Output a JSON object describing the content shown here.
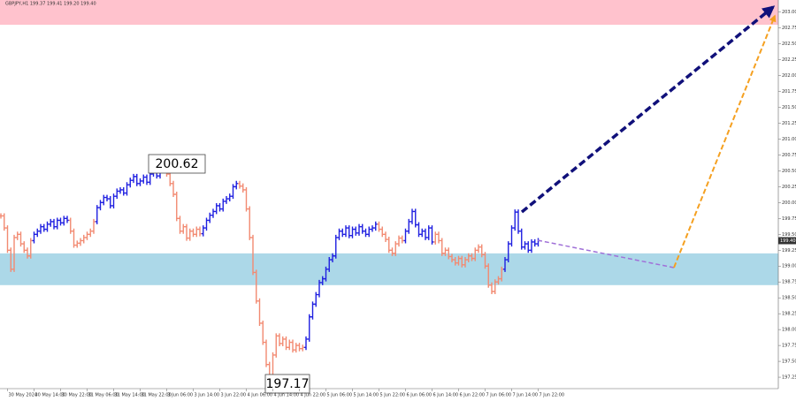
{
  "chart_data": {
    "type": "bar_ohlc",
    "header": "GBPJPY,H1  199.37 199.41 199.20 199.40",
    "price_label": "199.40",
    "annotations": [
      "200.62",
      "197.17"
    ],
    "ylim": [
      197.07,
      203.19
    ],
    "yticks": [
      197.25,
      {
        "value": 197.5,
        "label": "197.50"
      },
      197.75,
      {
        "value": 198,
        "label": "198.00"
      },
      198.25,
      {
        "value": 198.5,
        "label": "198.50"
      },
      198.75,
      {
        "value": 199,
        "label": "199.00"
      },
      199.25,
      {
        "value": 199.5,
        "label": "199.50"
      },
      199.75,
      {
        "value": 200,
        "label": "200.00"
      },
      200.25,
      {
        "value": 200.5,
        "label": "200.50"
      },
      200.75,
      {
        "value": 201,
        "label": "201.00"
      },
      201.25,
      {
        "value": 201.5,
        "label": "201.50"
      },
      201.75,
      {
        "value": 202,
        "label": "202.00"
      },
      202.25,
      {
        "value": 202.5,
        "label": "202.50"
      },
      202.75,
      {
        "value": 203,
        "label": "203.00"
      }
    ],
    "zones": [
      {
        "range": [
          202.8,
          203.19
        ],
        "color": "#ffc2cd"
      },
      {
        "range": [
          198.7,
          199.2
        ],
        "color": "#acd8e8"
      }
    ],
    "categories": [
      null,
      null,
      "30 May 2024",
      null,
      null,
      null,
      null,
      null,
      null,
      null,
      "30 May 14:00",
      null,
      null,
      null,
      null,
      null,
      null,
      null,
      "30 May 22:00",
      null,
      null,
      null,
      null,
      null,
      null,
      null,
      "31 May 06:00",
      null,
      null,
      null,
      null,
      null,
      null,
      null,
      "31 May 14:00",
      null,
      null,
      null,
      null,
      null,
      null,
      null,
      "31 May 22:00",
      null,
      null,
      null,
      null,
      null,
      null,
      null,
      "3 Jun 06:00",
      null,
      null,
      null,
      null,
      null,
      null,
      null,
      "3 Jun 14:00",
      null,
      null,
      null,
      null,
      null,
      null,
      null,
      "3 Jun 22:00",
      null,
      null,
      null,
      null,
      null,
      null,
      null,
      "4 Jun 06:00",
      null,
      null,
      null,
      null,
      null,
      null,
      null,
      "4 Jun 14:00",
      null,
      null,
      null,
      null,
      null,
      null,
      null,
      "4 Jun 22:00",
      null,
      null,
      null,
      null,
      null,
      null,
      null,
      "5 Jun 06:00",
      null,
      null,
      null,
      null,
      null,
      null,
      null,
      "5 Jun 14:00",
      null,
      null,
      null,
      null,
      null,
      null,
      null,
      "5 Jun 22:00",
      null,
      null,
      null,
      null,
      null,
      null,
      null,
      "6 Jun 06:00",
      null,
      null,
      null,
      null,
      null,
      null,
      null,
      "6 Jun 14:00",
      null,
      null,
      null,
      null,
      null,
      null,
      null,
      "6 Jun 22:00",
      null,
      null,
      null,
      null,
      null,
      null,
      null,
      "7 Jun 06:00",
      null,
      null,
      null,
      null,
      null,
      null,
      null,
      "7 Jun 14:00",
      null,
      null,
      null,
      null,
      null,
      null,
      null,
      "7 Jun 22:00"
    ],
    "series": [
      {
        "color": "#f28a72",
        "values": [
          199.79,
          199.6,
          199.25,
          198.95,
          199.45,
          199.5,
          199.35,
          199.25,
          199.16,
          199.4,
          null,
          null,
          null,
          null,
          null,
          null,
          null,
          null,
          null,
          null,
          null,
          199.55,
          199.33,
          199.36,
          199.4,
          199.45,
          199.5,
          199.55,
          199.7,
          null,
          null,
          null,
          null,
          null,
          null,
          null,
          null,
          null,
          null,
          null,
          null,
          null,
          null,
          null,
          null,
          null,
          null,
          null,
          null,
          null,
          200.45,
          200.3,
          200.13,
          199.75,
          199.55,
          199.62,
          199.44,
          199.55,
          199.5,
          199.58,
          199.51,
          null,
          null,
          null,
          null,
          null,
          null,
          null,
          null,
          null,
          null,
          null,
          200.26,
          200.2,
          199.9,
          199.45,
          198.9,
          198.45,
          198.1,
          197.8,
          197.45,
          197.17,
          197.6,
          197.9,
          197.78,
          197.85,
          197.72,
          197.8,
          197.68,
          197.75,
          197.7,
          197.72,
          null,
          null,
          null,
          null,
          null,
          null,
          null,
          null,
          null,
          null,
          null,
          null,
          null,
          null,
          null,
          null,
          null,
          null,
          null,
          null,
          null,
          null,
          199.58,
          199.5,
          199.42,
          199.25,
          199.2,
          199.35,
          199.44,
          199.4,
          null,
          null,
          null,
          null,
          null,
          null,
          null,
          null,
          null,
          199.5,
          199.4,
          199.2,
          199.25,
          199.15,
          199.1,
          199.05,
          199.12,
          199.02,
          199.1,
          199.16,
          199.12,
          199.25,
          199.3,
          199.18,
          199.0,
          198.7,
          198.6,
          198.75,
          198.8,
          198.95,
          null,
          null,
          null,
          null,
          null,
          null,
          null,
          null,
          null,
          null,
          null
        ]
      },
      {
        "color": "#2020e0",
        "values": [
          null,
          null,
          null,
          null,
          null,
          null,
          null,
          null,
          null,
          null,
          199.5,
          199.55,
          199.62,
          199.58,
          199.66,
          199.7,
          199.62,
          199.72,
          199.68,
          199.75,
          199.72,
          null,
          null,
          null,
          null,
          null,
          null,
          null,
          null,
          199.92,
          200.0,
          200.08,
          200.06,
          199.95,
          200.1,
          200.18,
          200.2,
          200.15,
          200.28,
          200.35,
          200.41,
          200.3,
          200.34,
          200.4,
          200.32,
          200.45,
          200.5,
          200.42,
          200.55,
          200.62,
          null,
          null,
          null,
          null,
          null,
          null,
          null,
          null,
          null,
          null,
          null,
          199.6,
          199.72,
          199.8,
          199.86,
          199.95,
          199.9,
          200.02,
          200.06,
          200.1,
          200.25,
          200.3,
          null,
          null,
          null,
          null,
          null,
          null,
          null,
          null,
          null,
          null,
          null,
          null,
          null,
          null,
          null,
          null,
          null,
          null,
          null,
          null,
          197.85,
          198.2,
          198.4,
          198.55,
          198.74,
          198.8,
          198.95,
          199.1,
          199.16,
          199.45,
          199.55,
          199.5,
          199.6,
          199.48,
          199.58,
          199.52,
          199.62,
          199.55,
          199.5,
          199.58,
          199.6,
          199.66,
          null,
          null,
          null,
          null,
          null,
          null,
          null,
          null,
          199.55,
          199.7,
          199.86,
          199.65,
          199.5,
          199.55,
          199.45,
          199.6,
          199.38,
          null,
          null,
          null,
          null,
          null,
          null,
          null,
          null,
          null,
          null,
          null,
          null,
          null,
          null,
          null,
          null,
          null,
          null,
          null,
          null,
          null,
          199.1,
          199.35,
          199.6,
          199.85,
          199.55,
          199.3,
          199.35,
          199.25,
          199.38,
          199.35,
          199.4
        ]
      }
    ]
  }
}
